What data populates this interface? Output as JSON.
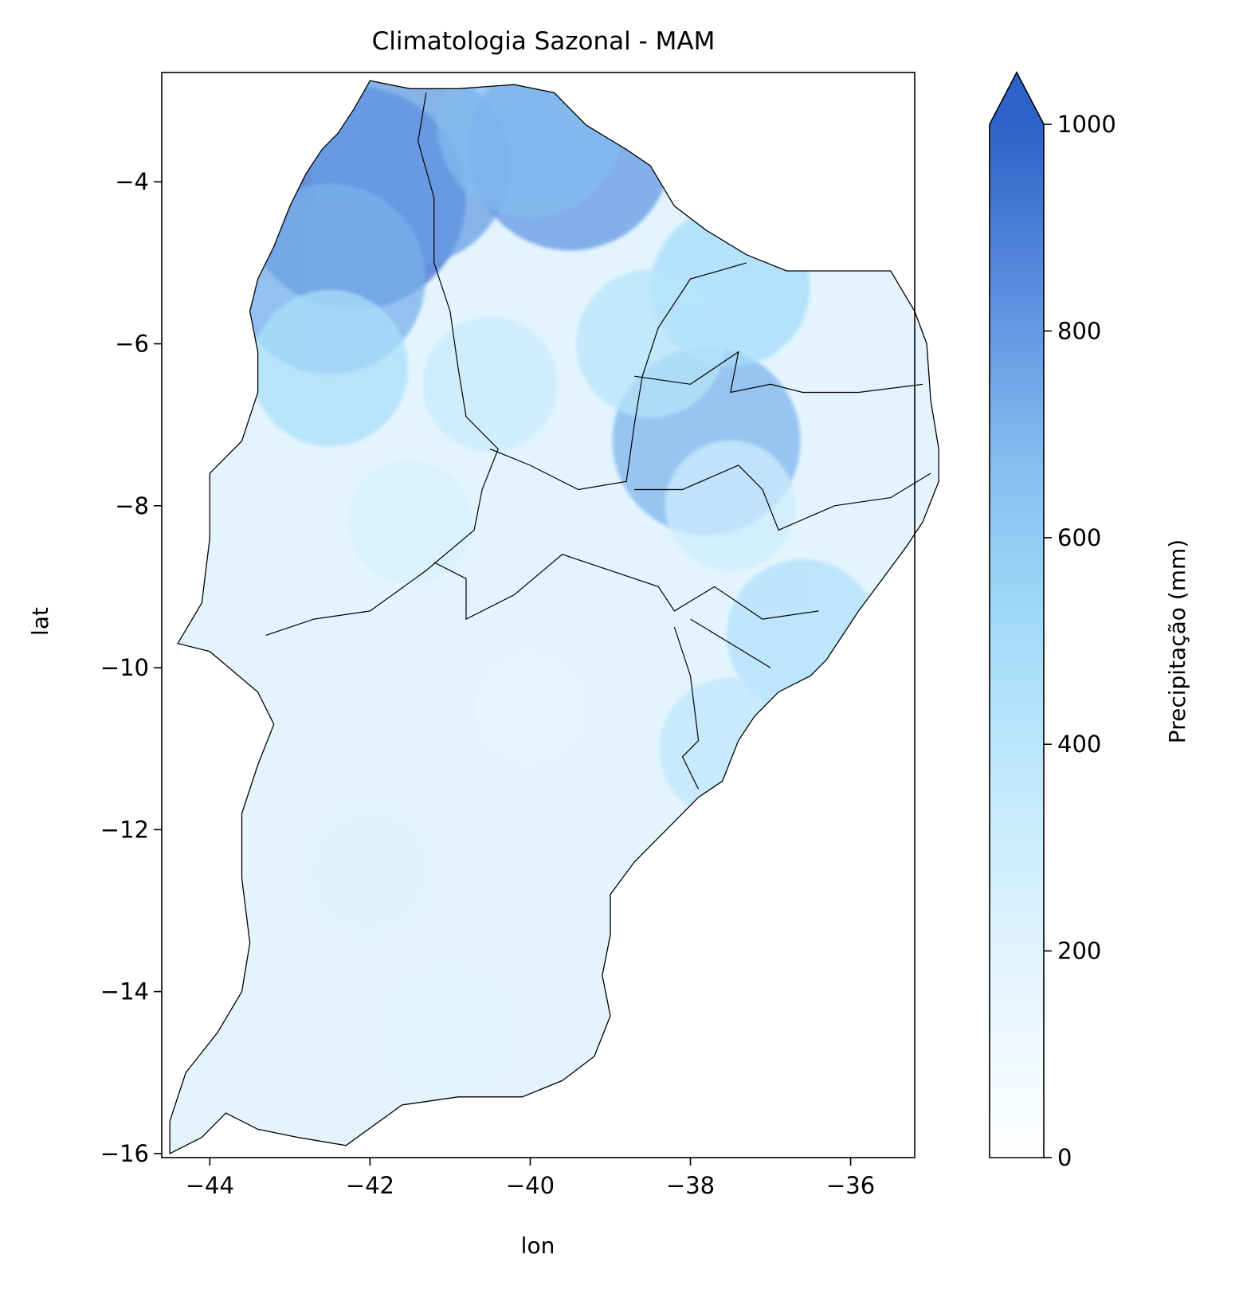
{
  "chart_data": {
    "type": "heatmap",
    "title": "Climatologia Sazonal - MAM",
    "xlabel": "lon",
    "ylabel": "lat",
    "xlim": [
      -44.6,
      -35.2
    ],
    "ylim": [
      -16.05,
      -2.65
    ],
    "x_ticks": [
      -44,
      -42,
      -40,
      -38,
      -36
    ],
    "x_tick_labels": [
      "−44",
      "−42",
      "−40",
      "−38",
      "−36"
    ],
    "y_ticks": [
      -4,
      -6,
      -8,
      -10,
      -12,
      -14,
      -16
    ],
    "y_tick_labels": [
      "−4",
      "−6",
      "−8",
      "−10",
      "−12",
      "−14",
      "−16"
    ],
    "grid": false,
    "colorbar": {
      "label": "Precipitação (mm)",
      "min": 0,
      "max": 1000,
      "extend": "max",
      "ticks": [
        0,
        200,
        400,
        600,
        800,
        1000
      ],
      "tick_labels": [
        "0",
        "200",
        "400",
        "600",
        "800",
        "1000"
      ],
      "colors": [
        "#ffffff",
        "#e6f5fe",
        "#c8ebfd",
        "#a6ddfa",
        "#86bff0",
        "#5c8fe0",
        "#2f62c8"
      ]
    },
    "precipitation_patterns_mm": [
      {
        "lon": -42.2,
        "lat": -4.2,
        "value": 950
      },
      {
        "lon": -41.5,
        "lat": -3.8,
        "value": 780
      },
      {
        "lon": -39.5,
        "lat": -3.6,
        "value": 800
      },
      {
        "lon": -40.0,
        "lat": -3.3,
        "value": 680
      },
      {
        "lon": -42.5,
        "lat": -5.2,
        "value": 720
      },
      {
        "lon": -42.5,
        "lat": -6.3,
        "value": 480
      },
      {
        "lon": -37.8,
        "lat": -7.2,
        "value": 700
      },
      {
        "lon": -37.5,
        "lat": -5.3,
        "value": 500
      },
      {
        "lon": -38.5,
        "lat": -6.0,
        "value": 420
      },
      {
        "lon": -40.5,
        "lat": -6.5,
        "value": 330
      },
      {
        "lon": -41.5,
        "lat": -8.2,
        "value": 250
      },
      {
        "lon": -37.5,
        "lat": -8.0,
        "value": 300
      },
      {
        "lon": -36.6,
        "lat": -9.6,
        "value": 450
      },
      {
        "lon": -37.5,
        "lat": -11.0,
        "value": 380
      },
      {
        "lon": -40.0,
        "lat": -10.5,
        "value": 150
      },
      {
        "lon": -42.0,
        "lat": -12.5,
        "value": 210
      },
      {
        "lon": -41.0,
        "lat": -14.5,
        "value": 200
      }
    ]
  }
}
